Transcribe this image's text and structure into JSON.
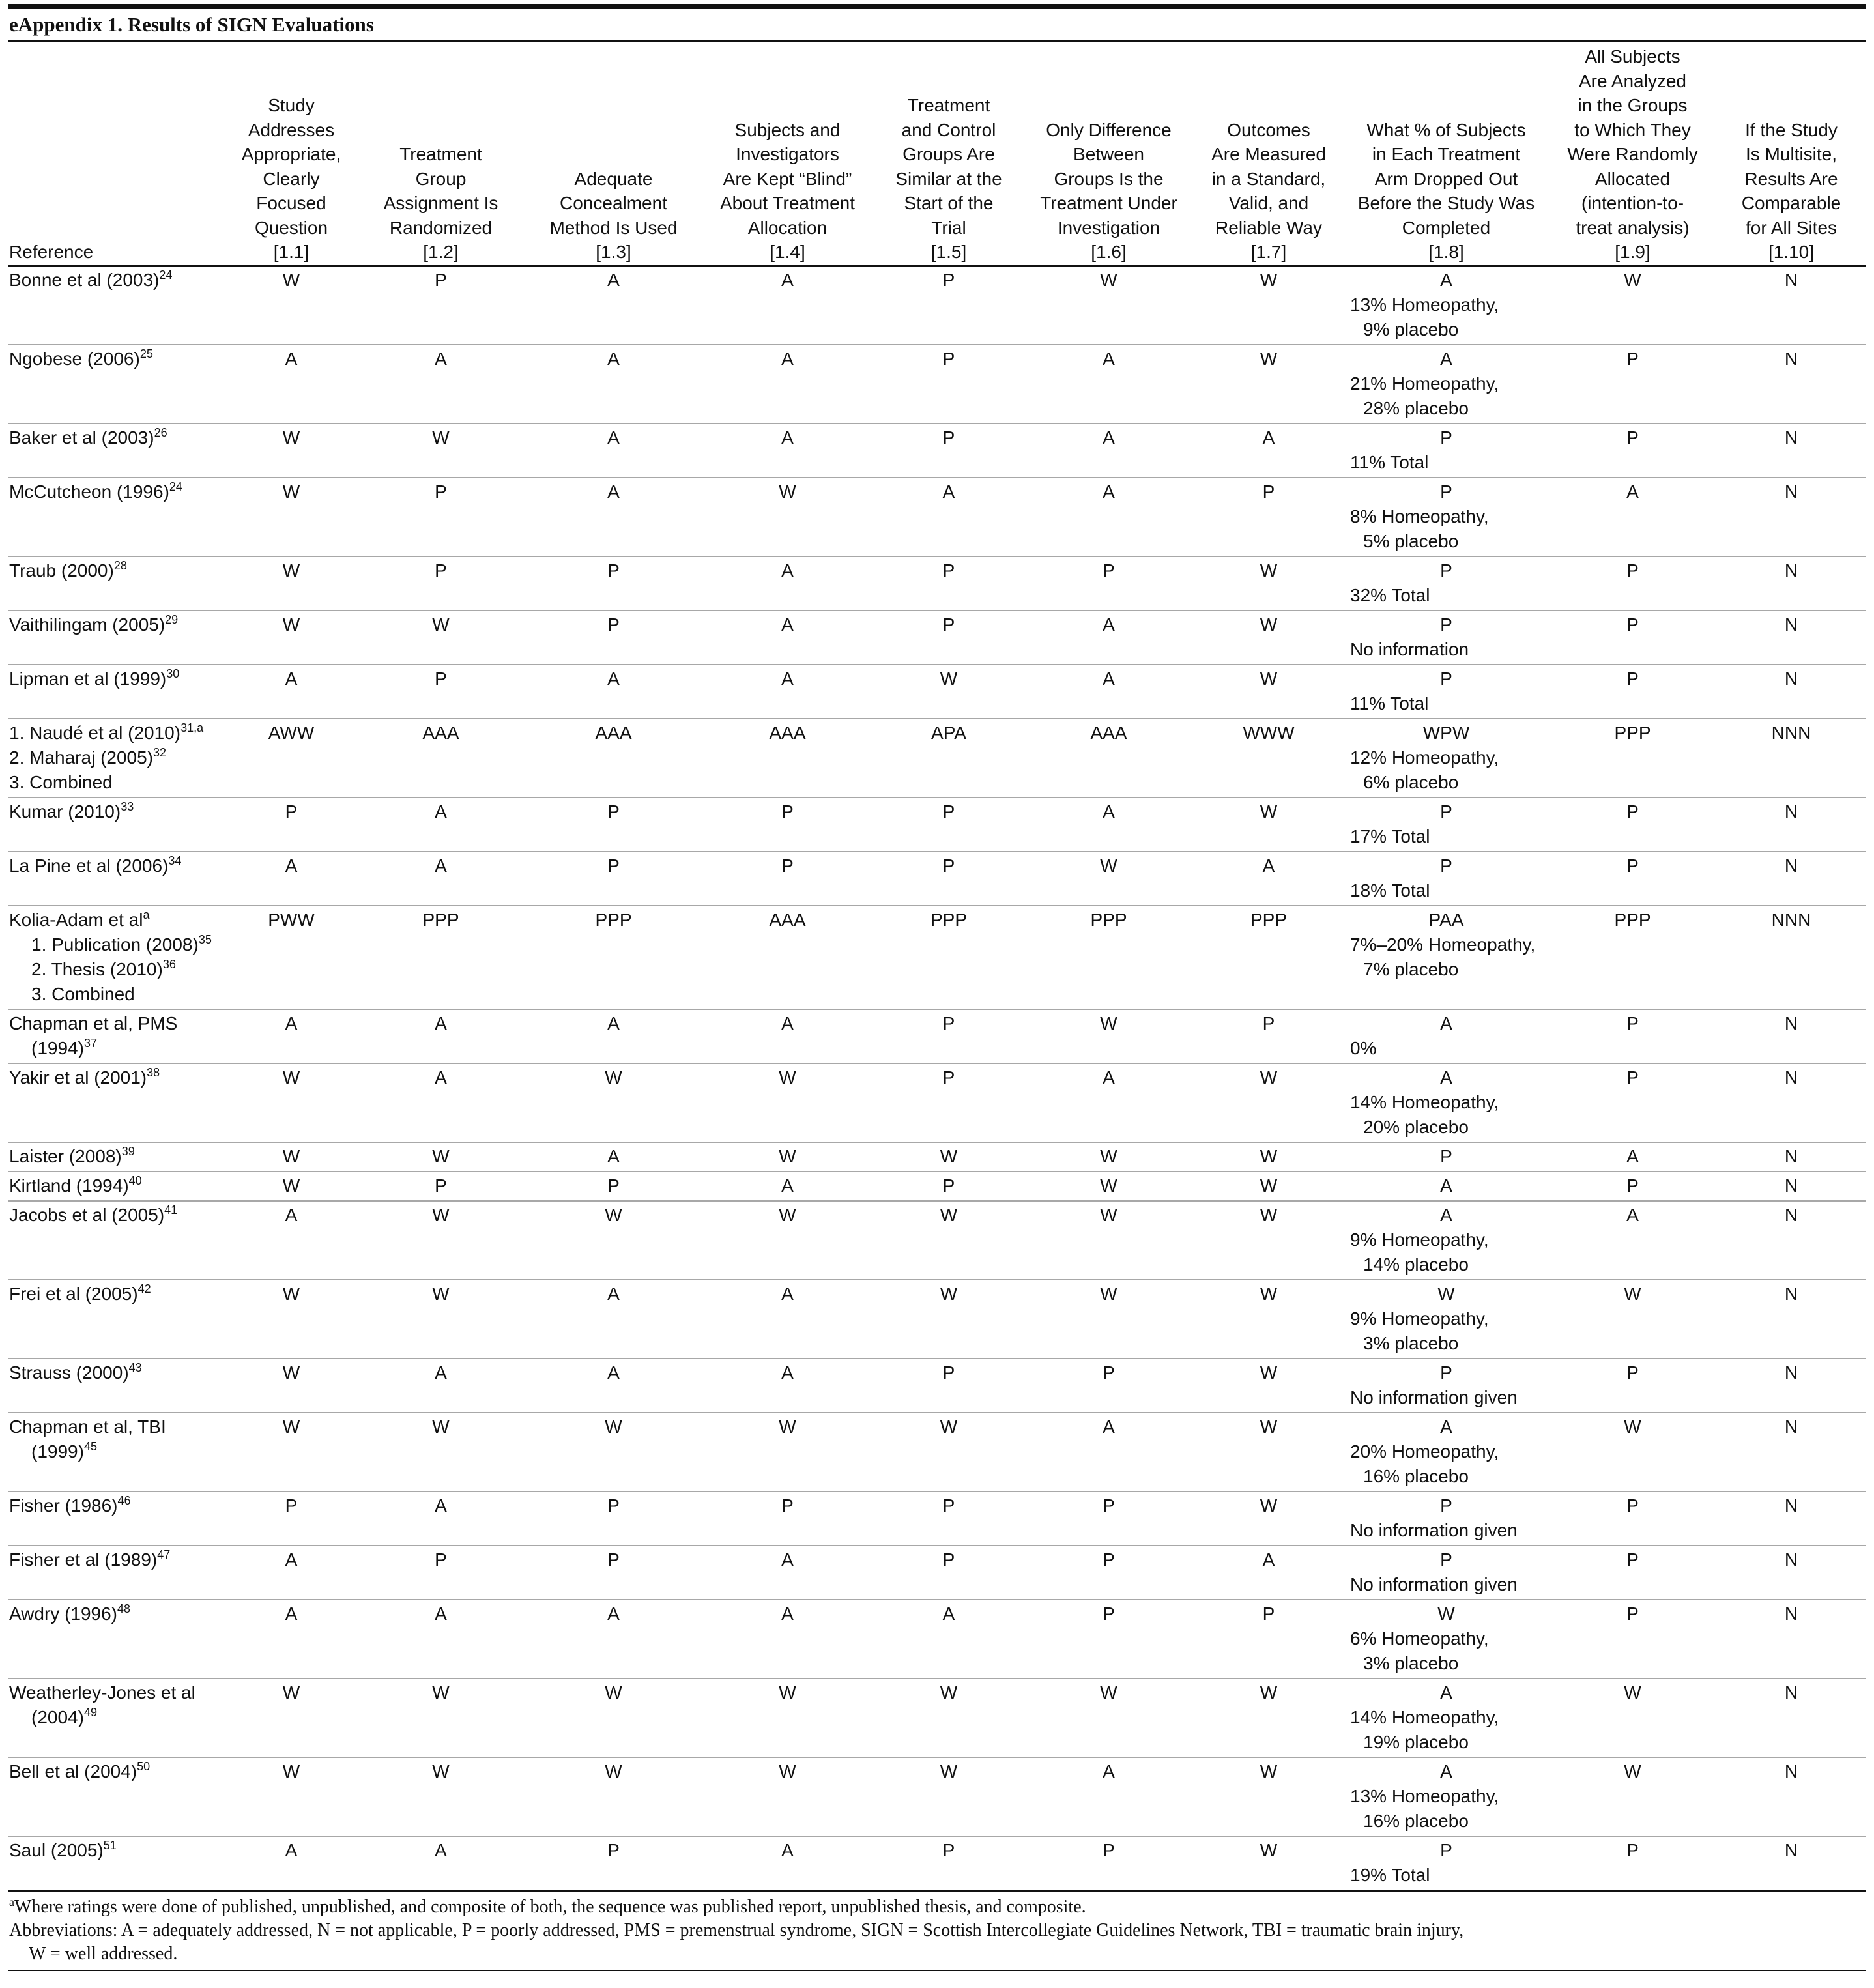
{
  "title": "eAppendix 1. Results of SIGN Evaluations",
  "headers": {
    "reference": "Reference",
    "columns": [
      {
        "label": "Study\nAddresses\nAppropriate,\nClearly\nFocused\nQuestion",
        "code": "[1.1]"
      },
      {
        "label": "Treatment\nGroup\nAssignment Is\nRandomized",
        "code": "[1.2]"
      },
      {
        "label": "Adequate\nConcealment\nMethod Is Used",
        "code": "[1.3]"
      },
      {
        "label": "Subjects and\nInvestigators\nAre Kept “Blind”\nAbout Treatment\nAllocation",
        "code": "[1.4]"
      },
      {
        "label": "Treatment\nand Control\nGroups Are\nSimilar at the\nStart of the\nTrial",
        "code": "[1.5]"
      },
      {
        "label": "Only Difference\nBetween\nGroups Is the\nTreatment Under\nInvestigation",
        "code": "[1.6]"
      },
      {
        "label": "Outcomes\nAre Measured\nin a Standard,\nValid, and\nReliable Way",
        "code": "[1.7]"
      },
      {
        "label": "What % of Subjects\nin Each Treatment\nArm Dropped Out\nBefore the Study Was\nCompleted",
        "code": "[1.8]"
      },
      {
        "label": "All Subjects\nAre Analyzed\nin the Groups\nto Which They\nWere Randomly\nAllocated\n(intention-to-\ntreat analysis)",
        "code": "[1.9]"
      },
      {
        "label": "If the Study\nIs Multisite,\nResults Are\nComparable\nfor All Sites",
        "code": "[1.10]"
      }
    ]
  },
  "rows": [
    {
      "ref": [
        {
          "text": "Bonne et al (2003)",
          "sup": "24"
        }
      ],
      "ratings": [
        "W",
        "P",
        "A",
        "A",
        "P",
        "W",
        "W",
        "A",
        "W",
        "N"
      ],
      "dropout": [
        "13% Homeopathy,",
        "9% placebo"
      ]
    },
    {
      "ref": [
        {
          "text": "Ngobese (2006)",
          "sup": "25"
        }
      ],
      "ratings": [
        "A",
        "A",
        "A",
        "A",
        "P",
        "A",
        "W",
        "A",
        "P",
        "N"
      ],
      "dropout": [
        "21% Homeopathy,",
        "28% placebo"
      ]
    },
    {
      "ref": [
        {
          "text": "Baker et al (2003)",
          "sup": "26"
        }
      ],
      "ratings": [
        "W",
        "W",
        "A",
        "A",
        "P",
        "A",
        "A",
        "P",
        "P",
        "N"
      ],
      "dropout": [
        "11% Total"
      ]
    },
    {
      "ref": [
        {
          "text": "McCutcheon (1996)",
          "sup": "24"
        }
      ],
      "ratings": [
        "W",
        "P",
        "A",
        "W",
        "A",
        "A",
        "P",
        "P",
        "A",
        "N"
      ],
      "dropout": [
        "8% Homeopathy,",
        "5% placebo"
      ]
    },
    {
      "ref": [
        {
          "text": "Traub (2000)",
          "sup": "28"
        }
      ],
      "ratings": [
        "W",
        "P",
        "P",
        "A",
        "P",
        "P",
        "W",
        "P",
        "P",
        "N"
      ],
      "dropout": [
        "32% Total"
      ]
    },
    {
      "ref": [
        {
          "text": "Vaithilingam (2005)",
          "sup": "29"
        }
      ],
      "ratings": [
        "W",
        "W",
        "P",
        "A",
        "P",
        "A",
        "W",
        "P",
        "P",
        "N"
      ],
      "dropout": [
        "No information"
      ]
    },
    {
      "ref": [
        {
          "text": "Lipman et al (1999)",
          "sup": "30"
        }
      ],
      "ratings": [
        "A",
        "P",
        "A",
        "A",
        "W",
        "A",
        "W",
        "P",
        "P",
        "N"
      ],
      "dropout": [
        "11% Total"
      ]
    },
    {
      "ref": [
        {
          "text": "1. Naudé et al (2010)",
          "sup": "31,a"
        },
        {
          "text": "2. Maharaj (2005)",
          "sup": "32"
        },
        {
          "text": "3. Combined",
          "sup": ""
        }
      ],
      "ratings": [
        "AWW",
        "AAA",
        "AAA",
        "AAA",
        "APA",
        "AAA",
        "WWW",
        "WPW",
        "PPP",
        "NNN"
      ],
      "dropout": [
        "12% Homeopathy,",
        "6% placebo"
      ]
    },
    {
      "ref": [
        {
          "text": "Kumar (2010)",
          "sup": "33"
        }
      ],
      "ratings": [
        "P",
        "A",
        "P",
        "P",
        "P",
        "A",
        "W",
        "P",
        "P",
        "N"
      ],
      "dropout": [
        "17% Total"
      ]
    },
    {
      "ref": [
        {
          "text": "La Pine et al (2006)",
          "sup": "34"
        }
      ],
      "ratings": [
        "A",
        "A",
        "P",
        "P",
        "P",
        "W",
        "A",
        "P",
        "P",
        "N"
      ],
      "dropout": [
        "18% Total"
      ]
    },
    {
      "ref": [
        {
          "text": "Kolia-Adam et al",
          "sup": "a"
        },
        {
          "text": "1. Publication (2008)",
          "sup": "35",
          "indent": true
        },
        {
          "text": "2. Thesis (2010)",
          "sup": "36",
          "indent": true
        },
        {
          "text": "3. Combined",
          "sup": "",
          "indent": true
        }
      ],
      "ratings": [
        "PWW",
        "PPP",
        "PPP",
        "AAA",
        "PPP",
        "PPP",
        "PPP",
        "PAA",
        "PPP",
        "NNN"
      ],
      "dropout": [
        "7%–20% Homeopathy,",
        "7% placebo"
      ]
    },
    {
      "ref": [
        {
          "text": "Chapman et al, PMS",
          "sup": ""
        },
        {
          "text": "(1994)",
          "sup": "37",
          "indent": true
        }
      ],
      "ratings": [
        "A",
        "A",
        "A",
        "A",
        "P",
        "W",
        "P",
        "A",
        "P",
        "N"
      ],
      "dropout": [
        "0%"
      ]
    },
    {
      "ref": [
        {
          "text": "Yakir et al (2001)",
          "sup": "38"
        }
      ],
      "ratings": [
        "W",
        "A",
        "W",
        "W",
        "P",
        "A",
        "W",
        "A",
        "P",
        "N"
      ],
      "dropout": [
        "14% Homeopathy,",
        "20% placebo"
      ]
    },
    {
      "ref": [
        {
          "text": "Laister (2008)",
          "sup": "39"
        }
      ],
      "ratings": [
        "W",
        "W",
        "A",
        "W",
        "W",
        "W",
        "W",
        "P",
        "A",
        "N"
      ],
      "dropout": []
    },
    {
      "ref": [
        {
          "text": "Kirtland (1994)",
          "sup": "40"
        }
      ],
      "ratings": [
        "W",
        "P",
        "P",
        "A",
        "P",
        "W",
        "W",
        "A",
        "P",
        "N"
      ],
      "dropout": []
    },
    {
      "ref": [
        {
          "text": "Jacobs et al (2005)",
          "sup": "41"
        }
      ],
      "ratings": [
        "A",
        "W",
        "W",
        "W",
        "W",
        "W",
        "W",
        "A",
        "A",
        "N"
      ],
      "dropout": [
        "9% Homeopathy,",
        "14% placebo"
      ]
    },
    {
      "ref": [
        {
          "text": "Frei et al (2005)",
          "sup": "42"
        }
      ],
      "ratings": [
        "W",
        "W",
        "A",
        "A",
        "W",
        "W",
        "W",
        "W",
        "W",
        "N"
      ],
      "dropout": [
        "9% Homeopathy,",
        "3% placebo"
      ]
    },
    {
      "ref": [
        {
          "text": "Strauss (2000)",
          "sup": "43"
        }
      ],
      "ratings": [
        "W",
        "A",
        "A",
        "A",
        "P",
        "P",
        "W",
        "P",
        "P",
        "N"
      ],
      "dropout": [
        "No information given"
      ]
    },
    {
      "ref": [
        {
          "text": "Chapman et al, TBI",
          "sup": ""
        },
        {
          "text": "(1999)",
          "sup": "45",
          "indent": true
        }
      ],
      "ratings": [
        "W",
        "W",
        "W",
        "W",
        "W",
        "A",
        "W",
        "A",
        "W",
        "N"
      ],
      "dropout": [
        "20% Homeopathy,",
        "16% placebo"
      ]
    },
    {
      "ref": [
        {
          "text": "Fisher (1986)",
          "sup": "46"
        }
      ],
      "ratings": [
        "P",
        "A",
        "P",
        "P",
        "P",
        "P",
        "W",
        "P",
        "P",
        "N"
      ],
      "dropout": [
        "No information given"
      ]
    },
    {
      "ref": [
        {
          "text": "Fisher et al (1989)",
          "sup": "47"
        }
      ],
      "ratings": [
        "A",
        "P",
        "P",
        "A",
        "P",
        "P",
        "A",
        "P",
        "P",
        "N"
      ],
      "dropout": [
        "No information given"
      ]
    },
    {
      "ref": [
        {
          "text": "Awdry (1996)",
          "sup": "48"
        }
      ],
      "ratings": [
        "A",
        "A",
        "A",
        "A",
        "A",
        "P",
        "P",
        "W",
        "P",
        "N"
      ],
      "dropout": [
        "6% Homeopathy,",
        "3% placebo"
      ]
    },
    {
      "ref": [
        {
          "text": "Weatherley-Jones et al",
          "sup": ""
        },
        {
          "text": "(2004)",
          "sup": "49",
          "indent": true
        }
      ],
      "ratings": [
        "W",
        "W",
        "W",
        "W",
        "W",
        "W",
        "W",
        "A",
        "W",
        "N"
      ],
      "dropout": [
        "14% Homeopathy,",
        "19% placebo"
      ]
    },
    {
      "ref": [
        {
          "text": "Bell et al (2004)",
          "sup": "50"
        }
      ],
      "ratings": [
        "W",
        "W",
        "W",
        "W",
        "W",
        "A",
        "W",
        "A",
        "W",
        "N"
      ],
      "dropout": [
        "13% Homeopathy,",
        "16% placebo"
      ]
    },
    {
      "ref": [
        {
          "text": "Saul (2005)",
          "sup": "51"
        }
      ],
      "ratings": [
        "A",
        "A",
        "P",
        "A",
        "P",
        "P",
        "W",
        "P",
        "P",
        "N"
      ],
      "dropout": [
        "19% Total"
      ]
    }
  ],
  "footnotes": {
    "a_mark": "a",
    "a_text": "Where ratings were done of published, unpublished, and composite of both, the sequence was published report, unpublished thesis, and composite.",
    "abbrev_line1": "Abbreviations: A = adequately addressed, N = not applicable, P = poorly addressed, PMS = premenstrual syndrome, SIGN = Scottish Intercollegiate Guidelines Network, TBI = traumatic brain injury,",
    "abbrev_line2": "W = well addressed."
  }
}
